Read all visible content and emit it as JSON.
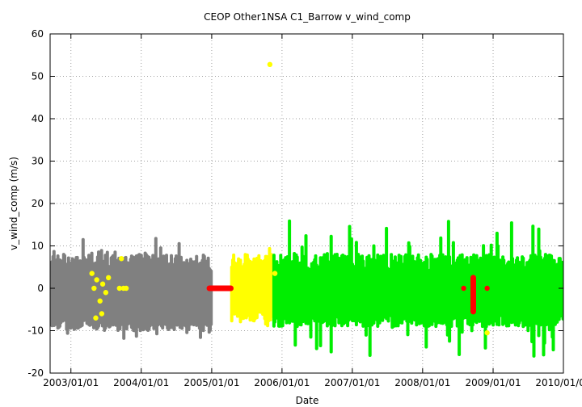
{
  "chart_data": {
    "type": "scatter",
    "title": "CEOP Other1NSA C1_Barrow  v_wind_comp",
    "xlabel": "Date",
    "ylabel": "v_wind_comp (m/s)",
    "xlim": [
      "2002/09/15",
      "2010/01/01"
    ],
    "ylim": [
      -20,
      60
    ],
    "y_ticks": [
      -20,
      -10,
      0,
      10,
      20,
      30,
      40,
      50,
      60
    ],
    "x_ticks": [
      "2003/01/01",
      "2004/01/01",
      "2005/01/01",
      "2006/01/01",
      "2007/01/01",
      "2008/01/01",
      "2009/01/01",
      "2010/01/01"
    ],
    "grid": "dotted",
    "legend": "none",
    "colors": {
      "gray": "#808080",
      "yellow": "#ffff00",
      "green": "#00ee00",
      "red": "#ff0000"
    },
    "series": [
      {
        "color": "gray",
        "x_range": [
          "2002/09/15",
          "2005/01/01"
        ],
        "typical_min": -10,
        "typical_max": 8,
        "extreme_min": -12,
        "extreme_max": 13
      },
      {
        "color": "yellow",
        "x_range": [
          "2005/04/15",
          "2005/11/20"
        ],
        "typical_min": -8,
        "typical_max": 8,
        "extreme_min": -9,
        "extreme_max": 10
      },
      {
        "color": "green",
        "x_range": [
          "2005/11/20",
          "2010/01/01"
        ],
        "typical_min": -9,
        "typical_max": 8,
        "extreme_min": -16,
        "extreme_max": 16
      },
      {
        "color": "yellow",
        "points": [
          [
            "2003/05/01",
            0
          ],
          [
            "2003/05/15",
            2
          ],
          [
            "2003/06/01",
            -3
          ],
          [
            "2003/06/15",
            1
          ],
          [
            "2003/07/01",
            -1
          ],
          [
            "2003/07/15",
            2.5
          ],
          [
            "2003/05/10",
            -7
          ],
          [
            "2003/04/20",
            3.5
          ],
          [
            "2003/09/10",
            0
          ],
          [
            "2003/09/20",
            7
          ],
          [
            "2003/10/01",
            0
          ],
          [
            "2003/10/15",
            0
          ],
          [
            "2003/06/10",
            -6
          ],
          [
            "2005/10/30",
            52.8
          ],
          [
            "2005/11/25",
            3.5
          ],
          [
            "2008/12/01",
            -10.5
          ]
        ]
      },
      {
        "color": "red",
        "segments": [
          [
            "2004/12/20",
            0,
            "2005/04/10",
            0
          ],
          [
            "2008/09/20",
            -5.5,
            "2008/09/20",
            2.5
          ]
        ],
        "points": [
          [
            "2008/08/01",
            0
          ],
          [
            "2008/12/01",
            0
          ]
        ]
      }
    ]
  }
}
